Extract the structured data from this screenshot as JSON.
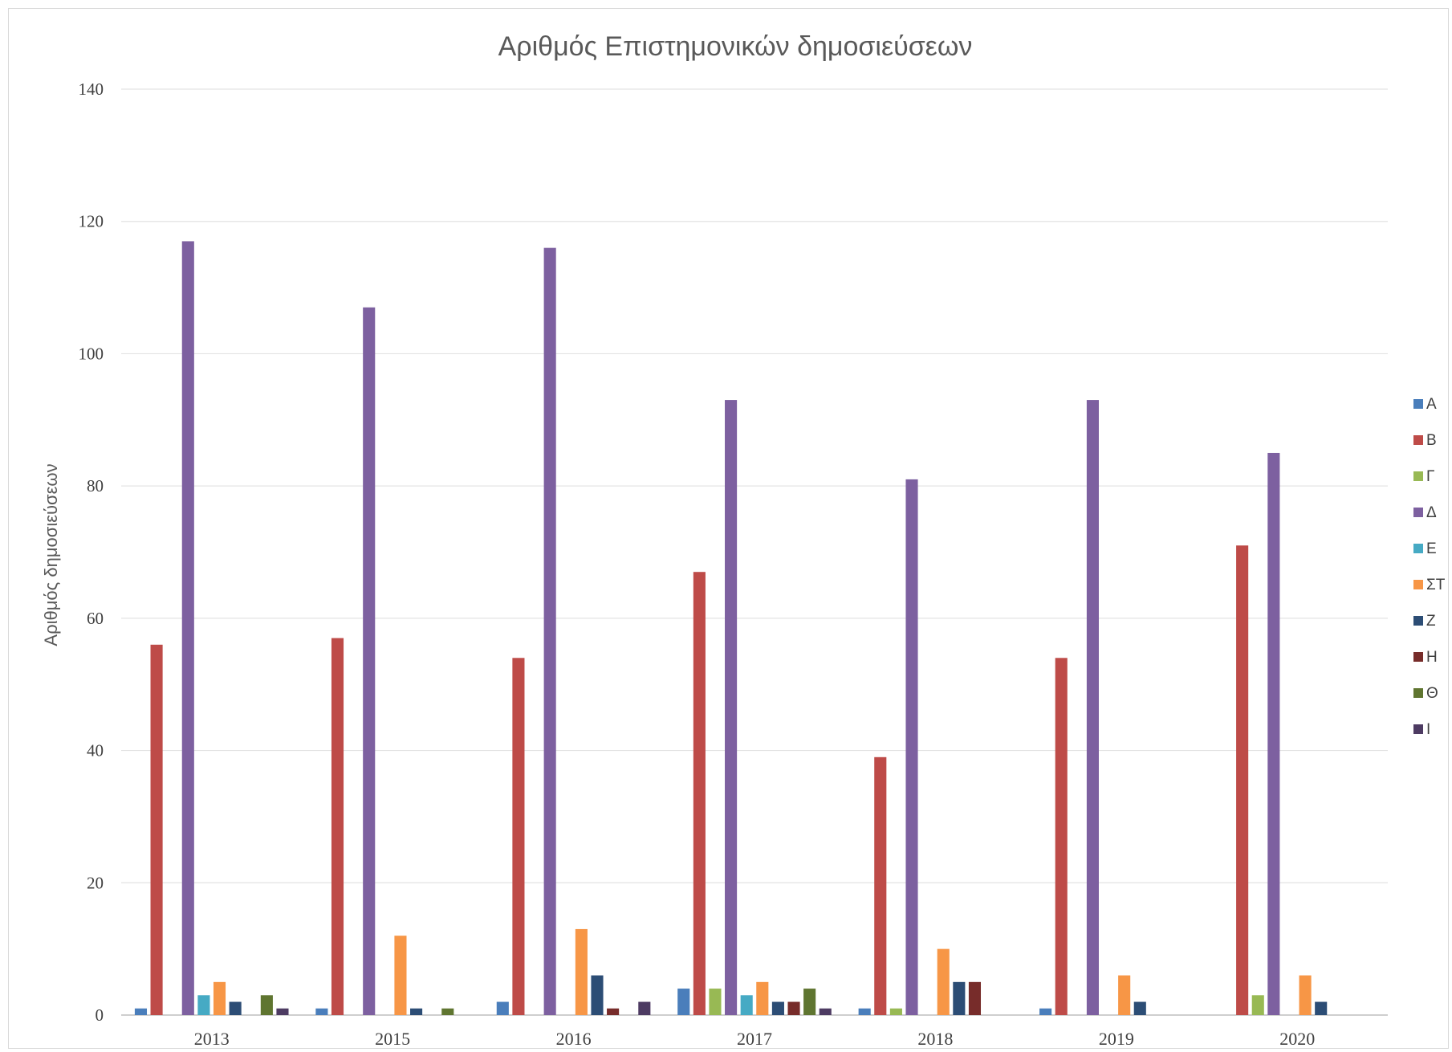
{
  "chart_data": {
    "type": "bar",
    "title": "Αριθμός Επιστημονικών δημοσιεύσεων",
    "xlabel": "",
    "ylabel": "Αριθμός δημοσιεύσεων",
    "ylim": [
      0,
      140
    ],
    "yticks": [
      0,
      20,
      40,
      60,
      80,
      100,
      120,
      140
    ],
    "grid": true,
    "legend_position": "right",
    "categories": [
      "2013",
      "2015",
      "2016",
      "2017",
      "2018",
      "2019",
      "2020"
    ],
    "series": [
      {
        "name": "Α",
        "color": "#4a7ebb",
        "values": [
          1,
          1,
          2,
          4,
          1,
          1,
          0
        ]
      },
      {
        "name": "Β",
        "color": "#be4b48",
        "values": [
          56,
          57,
          54,
          67,
          39,
          54,
          71
        ]
      },
      {
        "name": "Γ",
        "color": "#98b954",
        "values": [
          0,
          0,
          0,
          4,
          1,
          0,
          3
        ]
      },
      {
        "name": "Δ",
        "color": "#7d60a0",
        "values": [
          117,
          107,
          116,
          93,
          81,
          93,
          85
        ]
      },
      {
        "name": "Ε",
        "color": "#46aac4",
        "values": [
          3,
          0,
          0,
          3,
          0,
          0,
          0
        ]
      },
      {
        "name": "ΣΤ",
        "color": "#f79646",
        "values": [
          5,
          12,
          13,
          5,
          10,
          6,
          6
        ]
      },
      {
        "name": "Ζ",
        "color": "#2c4d75",
        "values": [
          2,
          1,
          6,
          2,
          5,
          2,
          2
        ]
      },
      {
        "name": "Η",
        "color": "#772c2a",
        "values": [
          0,
          0,
          1,
          2,
          5,
          0,
          0
        ]
      },
      {
        "name": "Θ",
        "color": "#5f7530",
        "values": [
          3,
          1,
          0,
          4,
          0,
          0,
          0
        ]
      },
      {
        "name": "Ι",
        "color": "#4d3b62",
        "values": [
          1,
          0,
          2,
          1,
          0,
          0,
          0
        ]
      }
    ]
  }
}
